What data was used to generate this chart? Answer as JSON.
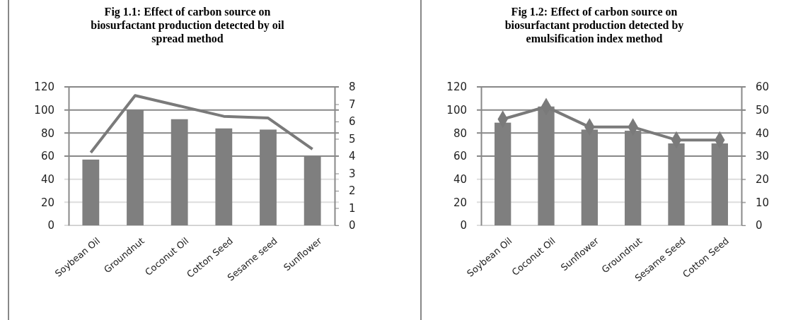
{
  "chart_data": [
    {
      "type": "bar",
      "title": "Fig 1.1: Effect of carbon source on biosurfactant production detected by oil spread method",
      "categories": [
        "Soybean Oil",
        "Groundnut",
        "Coconut Oil",
        "Cotton Seed",
        "Sesame seed",
        "Sunflower"
      ],
      "series": [
        {
          "color": "#7f7f7f",
          "values": [
            57,
            100,
            92,
            84,
            83,
            60
          ]
        },
        {
          "type": "line",
          "axis": "y2",
          "color": "#7a7a7a",
          "marker": "none",
          "values": [
            4.2,
            7.5,
            6.9,
            6.3,
            6.2,
            4.4
          ]
        }
      ],
      "ylim": [
        0,
        120
      ],
      "yticks": [
        0,
        20,
        40,
        60,
        80,
        100,
        120
      ],
      "y2lim": [
        0,
        8
      ],
      "y2ticks": [
        0,
        1,
        2,
        3,
        4,
        5,
        6,
        7,
        8
      ],
      "grid": "y"
    },
    {
      "type": "bar",
      "title": "Fig 1.2: Effect of carbon source on biosurfactant production detected by emulsification index method",
      "categories": [
        "Soybean Oil",
        "Coconut Oil",
        "Sunflower",
        "Groundnut",
        "Sesame Seed",
        "Cotton Seed"
      ],
      "series": [
        {
          "color": "#7f7f7f",
          "values": [
            89,
            103,
            83,
            82,
            71,
            71
          ]
        },
        {
          "type": "line",
          "axis": "y2",
          "color": "#7a7a7a",
          "marker": "diamond",
          "values": [
            46,
            51.4,
            42.6,
            42.6,
            37,
            37
          ]
        }
      ],
      "ylim": [
        0,
        120
      ],
      "yticks": [
        0,
        20,
        40,
        60,
        80,
        100,
        120
      ],
      "y2lim": [
        0,
        60
      ],
      "y2ticks": [
        0,
        10,
        20,
        30,
        40,
        50,
        60
      ],
      "grid": "y"
    }
  ]
}
